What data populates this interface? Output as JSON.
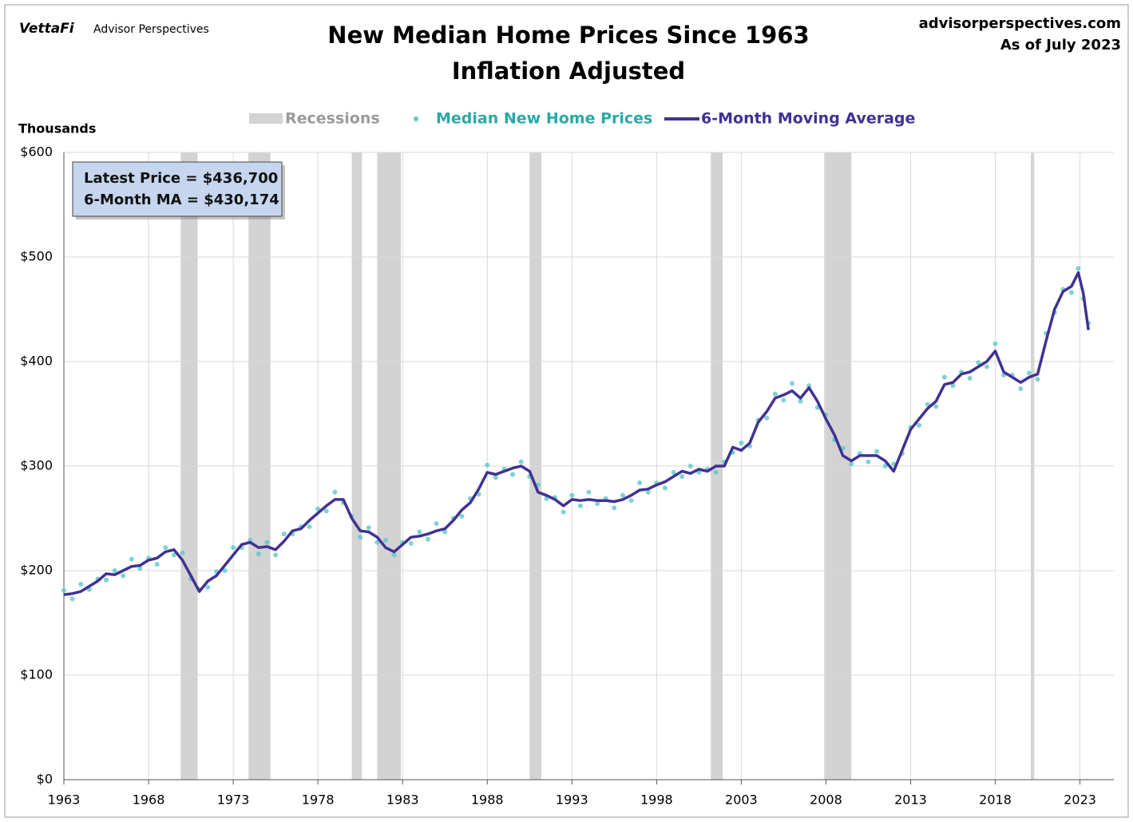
{
  "brand": {
    "logo": "VettaFi",
    "name": "Advisor Perspectives"
  },
  "source": {
    "site": "advisorperspectives.com",
    "as_of": "As of July 2023"
  },
  "annotation": [
    "Latest Price = $436,700",
    "6-Month MA = $430,174"
  ],
  "chart_data": {
    "type": "line",
    "title": [
      "New Median Home Prices Since 1963",
      "Inflation Adjusted"
    ],
    "y_unit_label": "Thousands",
    "xlim": [
      1963,
      2025
    ],
    "xticks": [
      1963,
      1968,
      1973,
      1978,
      1983,
      1988,
      1993,
      1998,
      2003,
      2008,
      2013,
      2018,
      2023
    ],
    "ylim": [
      0,
      600
    ],
    "yticks": [
      {
        "value": 0,
        "label": "$0"
      },
      {
        "value": 100,
        "label": "$100"
      },
      {
        "value": 200,
        "label": "$200"
      },
      {
        "value": 300,
        "label": "$300"
      },
      {
        "value": 400,
        "label": "$400"
      },
      {
        "value": 500,
        "label": "$500"
      },
      {
        "value": 600,
        "label": "$600"
      }
    ],
    "grid": true,
    "recession_label": "Recessions",
    "recession_color": "#d3d3d3",
    "recessions": [
      [
        1969.9,
        1970.9
      ],
      [
        1973.9,
        1975.2
      ],
      [
        1980.0,
        1980.6
      ],
      [
        1981.5,
        1982.9
      ],
      [
        1990.5,
        1991.2
      ],
      [
        2001.2,
        2001.9
      ],
      [
        2007.9,
        2009.5
      ],
      [
        2020.1,
        2020.3
      ]
    ],
    "series": [
      {
        "name": "Median New Home Prices",
        "color": "#5cc8c8",
        "style": "dots",
        "x": [
          1963,
          1963.5,
          1964,
          1964.5,
          1965,
          1965.5,
          1966,
          1966.5,
          1967,
          1967.5,
          1968,
          1968.5,
          1969,
          1969.5,
          1970,
          1970.5,
          1971,
          1971.5,
          1972,
          1972.5,
          1973,
          1973.5,
          1974,
          1974.5,
          1975,
          1975.5,
          1976,
          1976.5,
          1977,
          1977.5,
          1978,
          1978.5,
          1979,
          1979.5,
          1980,
          1980.5,
          1981,
          1981.5,
          1982,
          1982.5,
          1983,
          1983.5,
          1984,
          1984.5,
          1985,
          1985.5,
          1986,
          1986.5,
          1987,
          1987.5,
          1988,
          1988.5,
          1989,
          1989.5,
          1990,
          1990.5,
          1991,
          1991.5,
          1992,
          1992.5,
          1993,
          1993.5,
          1994,
          1994.5,
          1995,
          1995.5,
          1996,
          1996.5,
          1997,
          1997.5,
          1998,
          1998.5,
          1999,
          1999.5,
          2000,
          2000.5,
          2001,
          2001.5,
          2002,
          2002.5,
          2003,
          2003.5,
          2004,
          2004.5,
          2005,
          2005.5,
          2006,
          2006.5,
          2007,
          2007.5,
          2008,
          2008.5,
          2009,
          2009.5,
          2010,
          2010.5,
          2011,
          2011.5,
          2012,
          2012.5,
          2013,
          2013.5,
          2014,
          2014.5,
          2015,
          2015.5,
          2016,
          2016.5,
          2017,
          2017.5,
          2018,
          2018.5,
          2019,
          2019.5,
          2020,
          2020.5,
          2021,
          2021.5,
          2022,
          2022.5,
          2022.9,
          2023.2,
          2023.5
        ],
        "values": [
          181,
          173,
          187,
          182,
          192,
          191,
          200,
          195,
          211,
          202,
          212,
          206,
          222,
          215,
          217,
          192,
          182,
          184,
          199,
          200,
          222,
          222,
          229,
          216,
          227,
          215,
          235,
          235,
          242,
          242,
          259,
          257,
          275,
          265,
          252,
          232,
          241,
          227,
          229,
          215,
          227,
          226,
          237,
          230,
          245,
          237,
          250,
          252,
          269,
          273,
          301,
          289,
          297,
          292,
          304,
          290,
          282,
          269,
          270,
          256,
          272,
          262,
          275,
          264,
          269,
          260,
          272,
          267,
          284,
          275,
          284,
          279,
          294,
          290,
          300,
          294,
          297,
          294,
          304,
          313,
          322,
          319,
          344,
          346,
          369,
          363,
          379,
          362,
          377,
          356,
          349,
          325,
          317,
          302,
          312,
          304,
          314,
          300,
          302,
          312,
          337,
          339,
          359,
          357,
          385,
          377,
          390,
          384,
          399,
          395,
          417,
          387,
          387,
          374,
          389,
          383,
          427,
          447,
          469,
          466,
          489,
          460,
          436.7
        ]
      },
      {
        "name": "6-Month Moving Average",
        "color": "#3f3291",
        "style": "line",
        "x": [
          1963,
          1963.5,
          1964,
          1964.5,
          1965,
          1965.5,
          1966,
          1966.5,
          1967,
          1967.5,
          1968,
          1968.5,
          1969,
          1969.5,
          1970,
          1970.5,
          1971,
          1971.5,
          1972,
          1972.5,
          1973,
          1973.5,
          1974,
          1974.5,
          1975,
          1975.5,
          1976,
          1976.5,
          1977,
          1977.5,
          1978,
          1978.5,
          1979,
          1979.5,
          1980,
          1980.5,
          1981,
          1981.5,
          1982,
          1982.5,
          1983,
          1983.5,
          1984,
          1984.5,
          1985,
          1985.5,
          1986,
          1986.5,
          1987,
          1987.5,
          1988,
          1988.5,
          1989,
          1989.5,
          1990,
          1990.5,
          1991,
          1991.5,
          1992,
          1992.5,
          1993,
          1993.5,
          1994,
          1994.5,
          1995,
          1995.5,
          1996,
          1996.5,
          1997,
          1997.5,
          1998,
          1998.5,
          1999,
          1999.5,
          2000,
          2000.5,
          2001,
          2001.5,
          2002,
          2002.5,
          2003,
          2003.5,
          2004,
          2004.5,
          2005,
          2005.5,
          2006,
          2006.5,
          2007,
          2007.5,
          2008,
          2008.5,
          2009,
          2009.5,
          2010,
          2010.5,
          2011,
          2011.5,
          2012,
          2012.5,
          2013,
          2013.5,
          2014,
          2014.5,
          2015,
          2015.5,
          2016,
          2016.5,
          2017,
          2017.5,
          2018,
          2018.5,
          2019,
          2019.5,
          2020,
          2020.5,
          2021,
          2021.5,
          2022,
          2022.5,
          2022.9,
          2023.2,
          2023.5
        ],
        "values": [
          177,
          178,
          180,
          185,
          190,
          197,
          196,
          200,
          204,
          205,
          210,
          212,
          218,
          220,
          210,
          195,
          180,
          190,
          195,
          205,
          215,
          225,
          227,
          222,
          223,
          220,
          228,
          238,
          240,
          248,
          255,
          262,
          268,
          268,
          250,
          238,
          237,
          232,
          222,
          218,
          225,
          232,
          233,
          235,
          238,
          240,
          248,
          258,
          265,
          278,
          294,
          292,
          295,
          298,
          300,
          295,
          275,
          272,
          268,
          262,
          268,
          267,
          268,
          267,
          267,
          266,
          268,
          272,
          277,
          278,
          282,
          285,
          290,
          295,
          293,
          297,
          295,
          300,
          300,
          318,
          315,
          322,
          342,
          352,
          365,
          368,
          372,
          365,
          375,
          362,
          345,
          330,
          310,
          305,
          310,
          310,
          310,
          305,
          295,
          315,
          335,
          345,
          355,
          362,
          378,
          380,
          388,
          390,
          395,
          400,
          410,
          390,
          385,
          380,
          385,
          388,
          420,
          450,
          467,
          472,
          485,
          465,
          430.174
        ]
      }
    ]
  }
}
